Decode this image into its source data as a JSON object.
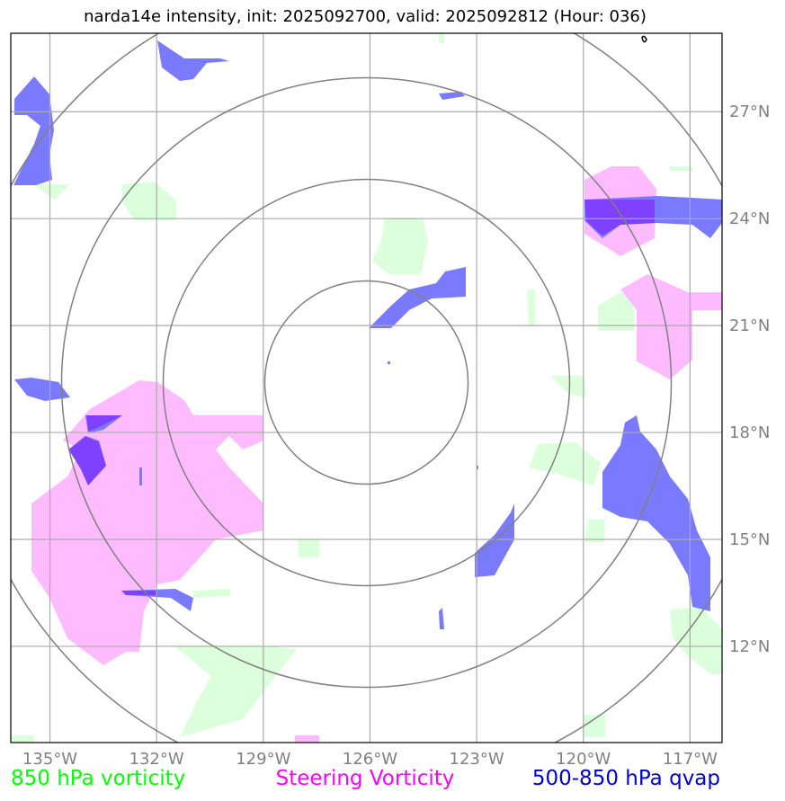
{
  "title": "narda14e intensity, init: 2025092700, valid: 2025092812 (Hour: 036)",
  "legend": {
    "left": {
      "label": "850 hPa vorticity",
      "color": "#00ff00"
    },
    "middle": {
      "label": "Steering Vorticity",
      "color": "#ff00ff"
    },
    "right": {
      "label": "500-850 hPa qvap",
      "color": "#0000cc"
    }
  },
  "colors": {
    "vorticity_fill": "#dcffdc",
    "steering_fill": "#ffbbff",
    "qvap_fill": "#7a7aff",
    "overlap_fill": "#8040ff",
    "grid": "#aaaaaa",
    "range_rings": "#808080"
  },
  "map": {
    "lon_ticks": [
      "135°W",
      "132°W",
      "129°W",
      "126°W",
      "123°W",
      "120°W",
      "117°W"
    ],
    "lat_ticks": [
      "27°N",
      "24°N",
      "21°N",
      "18°N",
      "15°N",
      "12°N"
    ],
    "lon_values": [
      -135,
      -132,
      -129,
      -126,
      -123,
      -120,
      -117
    ],
    "lat_values": [
      27,
      24,
      21,
      18,
      15,
      12
    ],
    "extent": {
      "lon_min": -136.1,
      "lon_max": -116.1,
      "lat_min": 9.3,
      "lat_max": 29.2
    },
    "center": {
      "lon": -126.1,
      "lat": 19.4
    },
    "range_ring_count": 4
  }
}
